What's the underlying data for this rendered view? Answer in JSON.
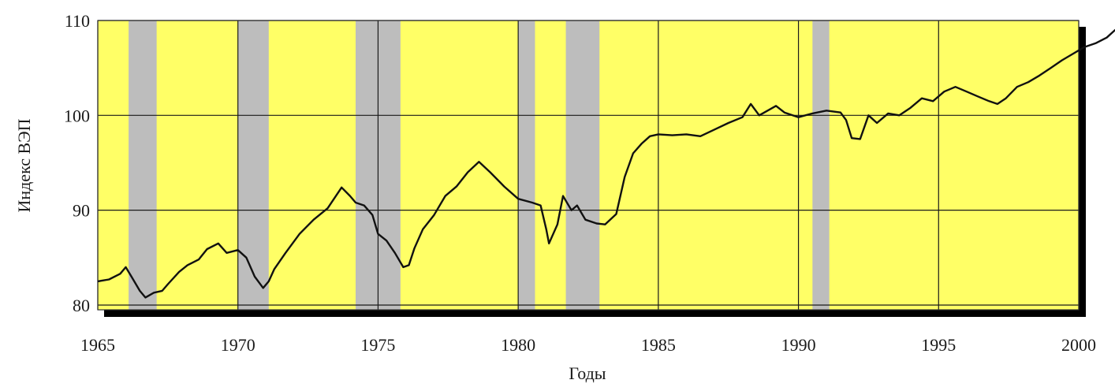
{
  "chart_data": {
    "type": "line",
    "title": "",
    "xlabel": "Годы",
    "ylabel": "Индекс ВЭП",
    "xlim": [
      1965,
      2000
    ],
    "ylim": [
      79.5,
      110
    ],
    "x_ticks": [
      "1965",
      "1970",
      "1975",
      "1980",
      "1985",
      "1990",
      "1995",
      "2000"
    ],
    "y_ticks": [
      "80",
      "90",
      "100",
      "110"
    ],
    "grid": true,
    "legend": "none",
    "colors": {
      "plot_background": "#ffff66",
      "recession_band": "#bdbdbd",
      "line": "#111111",
      "grid": "#1a1a1a"
    },
    "shaded_periods": [
      [
        1966.1,
        1967.1
      ],
      [
        1970.0,
        1971.1
      ],
      [
        1974.2,
        1975.8
      ],
      [
        1980.0,
        1980.6
      ],
      [
        1981.7,
        1982.9
      ],
      [
        1990.5,
        1991.1
      ]
    ],
    "series": [
      {
        "values": [
          [
            1965.0,
            82.5
          ],
          [
            1965.4,
            82.7
          ],
          [
            1965.8,
            83.3
          ],
          [
            1966.0,
            84.0
          ],
          [
            1966.2,
            83.0
          ],
          [
            1966.5,
            81.5
          ],
          [
            1966.7,
            80.8
          ],
          [
            1967.0,
            81.3
          ],
          [
            1967.3,
            81.5
          ],
          [
            1967.5,
            82.2
          ],
          [
            1967.9,
            83.5
          ],
          [
            1968.2,
            84.2
          ],
          [
            1968.6,
            84.8
          ],
          [
            1968.9,
            85.9
          ],
          [
            1969.3,
            86.5
          ],
          [
            1969.6,
            85.5
          ],
          [
            1970.0,
            85.8
          ],
          [
            1970.3,
            85.0
          ],
          [
            1970.6,
            83.0
          ],
          [
            1970.9,
            81.8
          ],
          [
            1971.1,
            82.5
          ],
          [
            1971.3,
            83.8
          ],
          [
            1971.7,
            85.5
          ],
          [
            1972.2,
            87.5
          ],
          [
            1972.7,
            89.0
          ],
          [
            1973.2,
            90.2
          ],
          [
            1973.7,
            92.4
          ],
          [
            1974.0,
            91.5
          ],
          [
            1974.2,
            90.8
          ],
          [
            1974.5,
            90.5
          ],
          [
            1974.8,
            89.5
          ],
          [
            1975.0,
            87.5
          ],
          [
            1975.3,
            86.8
          ],
          [
            1975.6,
            85.5
          ],
          [
            1975.9,
            84.0
          ],
          [
            1976.1,
            84.2
          ],
          [
            1976.3,
            86.0
          ],
          [
            1976.6,
            88.0
          ],
          [
            1977.0,
            89.5
          ],
          [
            1977.4,
            91.5
          ],
          [
            1977.8,
            92.5
          ],
          [
            1978.2,
            94.0
          ],
          [
            1978.6,
            95.1
          ],
          [
            1979.0,
            94.0
          ],
          [
            1979.5,
            92.5
          ],
          [
            1980.0,
            91.2
          ],
          [
            1980.5,
            90.8
          ],
          [
            1980.8,
            90.5
          ],
          [
            1981.0,
            88.0
          ],
          [
            1981.1,
            86.5
          ],
          [
            1981.4,
            88.5
          ],
          [
            1981.6,
            91.5
          ],
          [
            1981.9,
            90.0
          ],
          [
            1982.1,
            90.5
          ],
          [
            1982.4,
            89.0
          ],
          [
            1982.8,
            88.6
          ],
          [
            1983.1,
            88.5
          ],
          [
            1983.5,
            89.6
          ],
          [
            1983.8,
            93.5
          ],
          [
            1984.1,
            96.0
          ],
          [
            1984.4,
            97.0
          ],
          [
            1984.7,
            97.8
          ],
          [
            1985.0,
            98.0
          ],
          [
            1985.5,
            97.9
          ],
          [
            1986.0,
            98.0
          ],
          [
            1986.5,
            97.8
          ],
          [
            1987.0,
            98.5
          ],
          [
            1987.5,
            99.2
          ],
          [
            1988.0,
            99.8
          ],
          [
            1988.3,
            101.2
          ],
          [
            1988.6,
            100.0
          ],
          [
            1988.9,
            100.5
          ],
          [
            1989.2,
            101.0
          ],
          [
            1989.5,
            100.3
          ],
          [
            1990.0,
            99.8
          ],
          [
            1990.5,
            100.2
          ],
          [
            1991.0,
            100.5
          ],
          [
            1991.5,
            100.3
          ],
          [
            1991.7,
            99.5
          ],
          [
            1991.9,
            97.6
          ],
          [
            1992.2,
            97.5
          ],
          [
            1992.5,
            100.0
          ],
          [
            1992.8,
            99.2
          ],
          [
            1993.2,
            100.2
          ],
          [
            1993.6,
            100.0
          ],
          [
            1994.0,
            100.8
          ],
          [
            1994.4,
            101.8
          ],
          [
            1994.8,
            101.5
          ],
          [
            1995.2,
            102.5
          ],
          [
            1995.6,
            103.0
          ],
          [
            1996.0,
            102.5
          ],
          [
            1996.4,
            102.0
          ],
          [
            1996.8,
            101.5
          ],
          [
            1997.1,
            101.2
          ],
          [
            1997.4,
            101.8
          ],
          [
            1997.8,
            103.0
          ],
          [
            1998.2,
            103.5
          ],
          [
            1998.6,
            104.2
          ],
          [
            1999.0,
            105.0
          ],
          [
            1999.4,
            105.8
          ],
          [
            1999.8,
            106.5
          ],
          [
            2000.2,
            107.2
          ],
          [
            2000.6,
            107.6
          ],
          [
            2001.0,
            108.2
          ],
          [
            2001.3,
            109.0
          ],
          [
            2001.5,
            109.2
          ]
        ]
      }
    ]
  }
}
